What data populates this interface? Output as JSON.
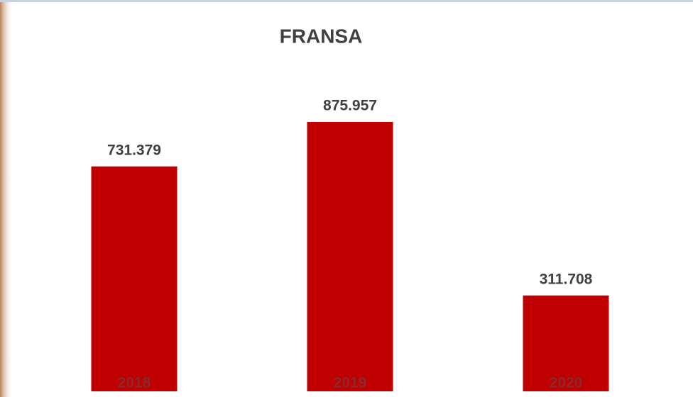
{
  "chart_data": {
    "type": "bar",
    "title": "FRANSA",
    "categories": [
      "2018",
      "2019",
      "2020"
    ],
    "values": [
      731379,
      875957,
      311708
    ],
    "value_labels": [
      "731.379",
      "875.957",
      "311.708"
    ],
    "color": "#c00000"
  }
}
